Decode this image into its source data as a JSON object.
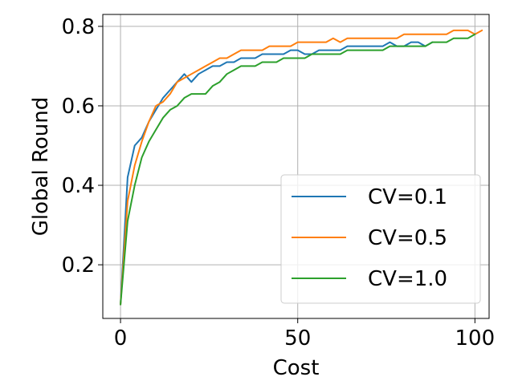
{
  "chart_data": {
    "type": "line",
    "title": "",
    "xlabel": "Cost",
    "ylabel": "Global Round",
    "xlim": [
      -5,
      104
    ],
    "ylim": [
      0.065,
      0.83
    ],
    "xticks": [
      0,
      50,
      100
    ],
    "yticks": [
      0.2,
      0.4,
      0.6,
      0.8
    ],
    "xtick_labels": [
      "0",
      "50",
      "100"
    ],
    "ytick_labels": [
      "0.2",
      "0.4",
      "0.6",
      "0.8"
    ],
    "grid": true,
    "legend_position": "lower-right",
    "series": [
      {
        "name": "CV=0.1",
        "color": "#1f77b4",
        "x": [
          0,
          2,
          4,
          6,
          8,
          10,
          12,
          14,
          16,
          18,
          20,
          22,
          24,
          26,
          28,
          30,
          32,
          34,
          36,
          38,
          40,
          42,
          44,
          46,
          48,
          50,
          52,
          54,
          56,
          58,
          60,
          62,
          64,
          66,
          68,
          70,
          72,
          74,
          76,
          78,
          80,
          82,
          84,
          86,
          88
        ],
        "values": [
          0.1,
          0.42,
          0.5,
          0.52,
          0.56,
          0.59,
          0.62,
          0.64,
          0.66,
          0.68,
          0.66,
          0.68,
          0.69,
          0.7,
          0.7,
          0.71,
          0.71,
          0.72,
          0.72,
          0.72,
          0.73,
          0.73,
          0.73,
          0.73,
          0.74,
          0.74,
          0.73,
          0.73,
          0.74,
          0.74,
          0.74,
          0.74,
          0.75,
          0.75,
          0.75,
          0.75,
          0.75,
          0.75,
          0.76,
          0.75,
          0.75,
          0.76,
          0.76,
          0.75,
          0.76
        ]
      },
      {
        "name": "CV=0.5",
        "color": "#ff7f0e",
        "x": [
          0,
          2,
          4,
          6,
          8,
          10,
          12,
          14,
          16,
          18,
          20,
          22,
          24,
          26,
          28,
          30,
          32,
          34,
          36,
          38,
          40,
          42,
          44,
          46,
          48,
          50,
          52,
          54,
          56,
          58,
          60,
          62,
          64,
          66,
          68,
          70,
          72,
          74,
          76,
          78,
          80,
          82,
          84,
          86,
          88,
          90,
          92,
          94,
          96,
          98,
          100,
          102
        ],
        "values": [
          0.1,
          0.36,
          0.45,
          0.51,
          0.56,
          0.6,
          0.61,
          0.63,
          0.66,
          0.67,
          0.68,
          0.69,
          0.7,
          0.71,
          0.72,
          0.72,
          0.73,
          0.74,
          0.74,
          0.74,
          0.74,
          0.75,
          0.75,
          0.75,
          0.75,
          0.76,
          0.76,
          0.76,
          0.76,
          0.76,
          0.77,
          0.76,
          0.77,
          0.77,
          0.77,
          0.77,
          0.77,
          0.77,
          0.77,
          0.77,
          0.78,
          0.78,
          0.78,
          0.78,
          0.78,
          0.78,
          0.78,
          0.79,
          0.79,
          0.79,
          0.78,
          0.79
        ]
      },
      {
        "name": "CV=1.0",
        "color": "#2ca02c",
        "x": [
          0,
          2,
          4,
          6,
          8,
          10,
          12,
          14,
          16,
          18,
          20,
          22,
          24,
          26,
          28,
          30,
          32,
          34,
          36,
          38,
          40,
          42,
          44,
          46,
          48,
          50,
          52,
          54,
          56,
          58,
          60,
          62,
          64,
          66,
          68,
          70,
          72,
          74,
          76,
          78,
          80,
          82,
          84,
          86,
          88,
          90,
          92,
          94,
          96,
          98,
          100
        ],
        "values": [
          0.1,
          0.31,
          0.4,
          0.47,
          0.51,
          0.54,
          0.57,
          0.59,
          0.6,
          0.62,
          0.63,
          0.63,
          0.63,
          0.65,
          0.66,
          0.68,
          0.69,
          0.7,
          0.7,
          0.7,
          0.71,
          0.71,
          0.71,
          0.72,
          0.72,
          0.72,
          0.72,
          0.73,
          0.73,
          0.73,
          0.73,
          0.73,
          0.74,
          0.74,
          0.74,
          0.74,
          0.74,
          0.74,
          0.75,
          0.75,
          0.75,
          0.75,
          0.75,
          0.75,
          0.76,
          0.76,
          0.76,
          0.77,
          0.77,
          0.77,
          0.78
        ]
      }
    ]
  }
}
